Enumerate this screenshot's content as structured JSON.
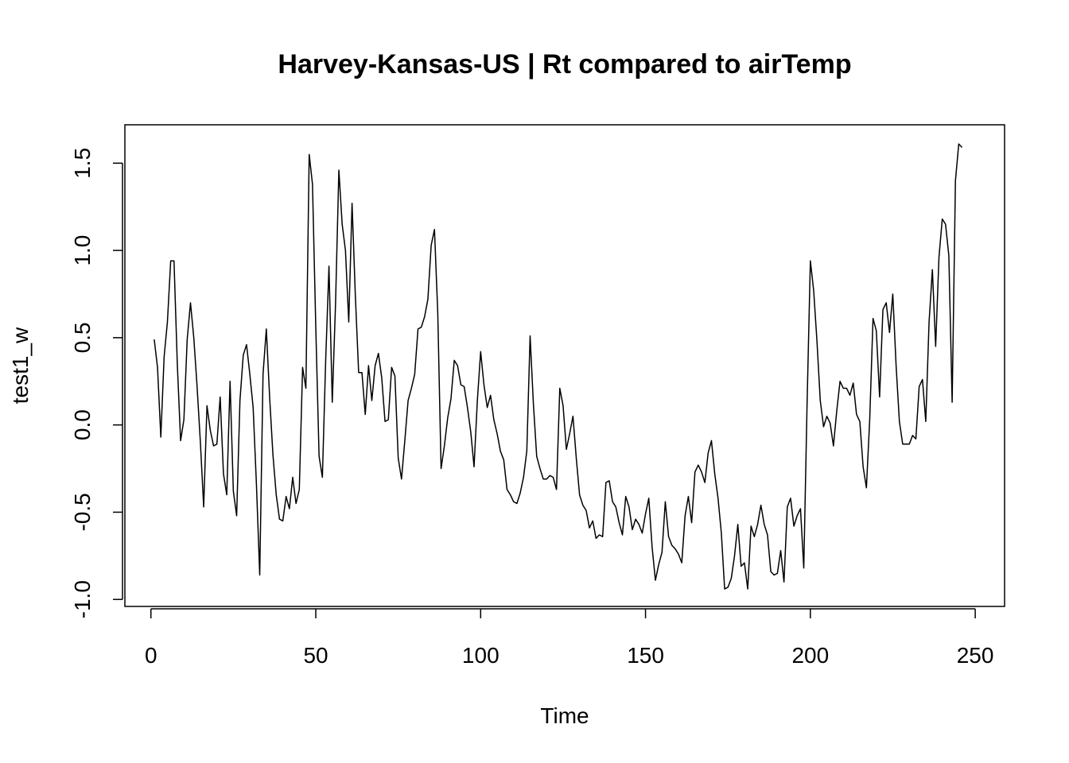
{
  "chart_data": {
    "type": "line",
    "title": "Harvey-Kansas-US | Rt compared to airTemp",
    "xlabel": "Time",
    "ylabel": "test1_w",
    "xlim": [
      -7.9,
      258.9
    ],
    "ylim": [
      -1.04,
      1.72
    ],
    "x_ticks": [
      0,
      50,
      100,
      150,
      200,
      250
    ],
    "x_tick_labels": [
      "0",
      "50",
      "100",
      "150",
      "200",
      "250"
    ],
    "y_ticks": [
      -1.0,
      -0.5,
      0.0,
      0.5,
      1.0,
      1.5
    ],
    "y_tick_labels": [
      "-1.0",
      "-0.5",
      "0.0",
      "0.5",
      "1.0",
      "1.5"
    ],
    "grid": false,
    "line_color": "#000000",
    "series": [
      {
        "x_start": 1,
        "values": [
          0.49,
          0.33,
          -0.07,
          0.39,
          0.59,
          0.94,
          0.94,
          0.35,
          -0.09,
          0.03,
          0.49,
          0.7,
          0.5,
          0.22,
          -0.1,
          -0.47,
          0.11,
          -0.03,
          -0.12,
          -0.11,
          0.16,
          -0.28,
          -0.4,
          0.25,
          -0.38,
          -0.52,
          0.14,
          0.4,
          0.46,
          0.29,
          0.1,
          -0.34,
          -0.86,
          0.29,
          0.55,
          0.16,
          -0.17,
          -0.4,
          -0.54,
          -0.55,
          -0.41,
          -0.48,
          -0.3,
          -0.45,
          -0.37,
          0.33,
          0.21,
          1.55,
          1.38,
          0.56,
          -0.18,
          -0.3,
          0.37,
          0.91,
          0.13,
          0.7,
          1.46,
          1.15,
          1.0,
          0.59,
          1.27,
          0.74,
          0.3,
          0.3,
          0.06,
          0.34,
          0.14,
          0.34,
          0.41,
          0.27,
          0.02,
          0.03,
          0.33,
          0.28,
          -0.19,
          -0.31,
          -0.09,
          0.14,
          0.21,
          0.29,
          0.55,
          0.56,
          0.62,
          0.72,
          1.03,
          1.12,
          0.64,
          -0.25,
          -0.12,
          0.04,
          0.15,
          0.37,
          0.34,
          0.23,
          0.22,
          0.1,
          -0.04,
          -0.24,
          0.14,
          0.42,
          0.23,
          0.1,
          0.17,
          0.03,
          -0.05,
          -0.15,
          -0.2,
          -0.37,
          -0.4,
          -0.44,
          -0.45,
          -0.39,
          -0.3,
          -0.15,
          0.51,
          0.12,
          -0.18,
          -0.25,
          -0.31,
          -0.31,
          -0.29,
          -0.3,
          -0.37,
          0.21,
          0.11,
          -0.14,
          -0.05,
          0.05,
          -0.19,
          -0.4,
          -0.46,
          -0.49,
          -0.59,
          -0.55,
          -0.65,
          -0.63,
          -0.64,
          -0.33,
          -0.32,
          -0.44,
          -0.47,
          -0.56,
          -0.63,
          -0.41,
          -0.47,
          -0.6,
          -0.54,
          -0.57,
          -0.62,
          -0.51,
          -0.42,
          -0.7,
          -0.89,
          -0.8,
          -0.73,
          -0.44,
          -0.64,
          -0.69,
          -0.71,
          -0.74,
          -0.79,
          -0.52,
          -0.41,
          -0.56,
          -0.27,
          -0.23,
          -0.27,
          -0.33,
          -0.16,
          -0.09,
          -0.28,
          -0.42,
          -0.62,
          -0.94,
          -0.93,
          -0.88,
          -0.75,
          -0.57,
          -0.81,
          -0.79,
          -0.94,
          -0.58,
          -0.64,
          -0.57,
          -0.46,
          -0.57,
          -0.63,
          -0.84,
          -0.86,
          -0.85,
          -0.72,
          -0.9,
          -0.47,
          -0.42,
          -0.58,
          -0.52,
          -0.48,
          -0.82,
          0.12,
          0.94,
          0.77,
          0.48,
          0.14,
          -0.01,
          0.05,
          0.01,
          -0.12,
          0.08,
          0.25,
          0.21,
          0.21,
          0.17,
          0.24,
          0.06,
          0.02,
          -0.24,
          -0.36,
          0.03,
          0.61,
          0.54,
          0.16,
          0.66,
          0.7,
          0.53,
          0.75,
          0.34,
          0.02,
          -0.11,
          -0.11,
          -0.11,
          -0.06,
          -0.08,
          0.22,
          0.26,
          0.02,
          0.59,
          0.89,
          0.45,
          0.96,
          1.18,
          1.15,
          0.97,
          0.13,
          1.4,
          1.61,
          1.59
        ]
      }
    ]
  }
}
